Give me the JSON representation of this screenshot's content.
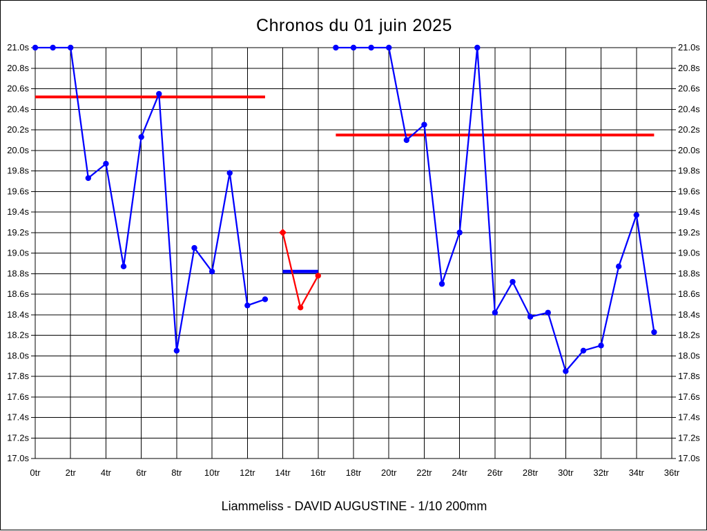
{
  "chart_data": {
    "type": "line",
    "title": "Chronos du 01 juin 2025",
    "subtitle": "Liammeliss - DAVID AUGUSTINE - 1/10 200mm",
    "x_unit": "tr",
    "y_unit": "s",
    "xlim": [
      0,
      36
    ],
    "ylim": [
      17.0,
      21.0
    ],
    "x_tick_step": 2,
    "y_tick_step": 0.2,
    "grid": true,
    "y_axis_sides": [
      "left",
      "right"
    ],
    "x_tick_labels": [
      "0tr",
      "2tr",
      "4tr",
      "6tr",
      "8tr",
      "10tr",
      "12tr",
      "14tr",
      "16tr",
      "18tr",
      "20tr",
      "22tr",
      "24tr",
      "26tr",
      "28tr",
      "30tr",
      "32tr",
      "34tr",
      "36tr"
    ],
    "y_tick_labels": [
      "21.0s",
      "20.8s",
      "20.6s",
      "20.4s",
      "20.2s",
      "20.0s",
      "19.8s",
      "19.6s",
      "19.4s",
      "19.2s",
      "19.0s",
      "18.8s",
      "18.6s",
      "18.4s",
      "18.2s",
      "18.0s",
      "17.8s",
      "17.6s",
      "17.4s",
      "17.2s",
      "17.0s"
    ],
    "colors": {
      "main_series": "#0000ff",
      "highlight_series": "#ff0000",
      "grid": "#000000",
      "background": "#ffffff"
    },
    "series": [
      {
        "name": "run-1-laps",
        "color": "#0000ff",
        "marker": "circle",
        "x": [
          0,
          1,
          2,
          3,
          4,
          5,
          6,
          7,
          8,
          9,
          10,
          11,
          12,
          13
        ],
        "y": [
          21.0,
          21.0,
          21.0,
          19.73,
          19.87,
          18.87,
          20.13,
          20.55,
          18.05,
          19.05,
          18.82,
          19.78,
          18.49,
          18.55
        ]
      },
      {
        "name": "highlighted-laps",
        "color": "#ff0000",
        "marker": "circle",
        "marker_shapes": [
          "diamond",
          "circle",
          "circle"
        ],
        "x": [
          14,
          15,
          16
        ],
        "y": [
          19.2,
          18.47,
          18.78
        ]
      },
      {
        "name": "run-2-laps",
        "color": "#0000ff",
        "marker": "circle",
        "x": [
          17,
          18,
          19,
          20,
          21,
          22,
          23,
          24,
          25,
          26,
          27,
          28,
          29,
          30,
          31,
          32,
          33,
          34,
          35
        ],
        "y": [
          21.0,
          21.0,
          21.0,
          21.0,
          20.1,
          20.25,
          18.7,
          19.2,
          21.0,
          18.42,
          18.72,
          18.38,
          18.42,
          17.85,
          18.05,
          18.1,
          18.87,
          19.37,
          18.23
        ]
      }
    ],
    "reference_lines": [
      {
        "name": "red-mean-line-run-1",
        "color": "#ff0000",
        "y": 20.52,
        "x1": 0,
        "x2": 13,
        "width": 4
      },
      {
        "name": "red-mean-line-run-2",
        "color": "#ff0000",
        "y": 20.15,
        "x1": 17,
        "x2": 35,
        "width": 4
      },
      {
        "name": "blue-mean-line-highlight",
        "color": "#0000ff",
        "y": 18.82,
        "x1": 14,
        "x2": 16,
        "width": 5
      }
    ]
  }
}
